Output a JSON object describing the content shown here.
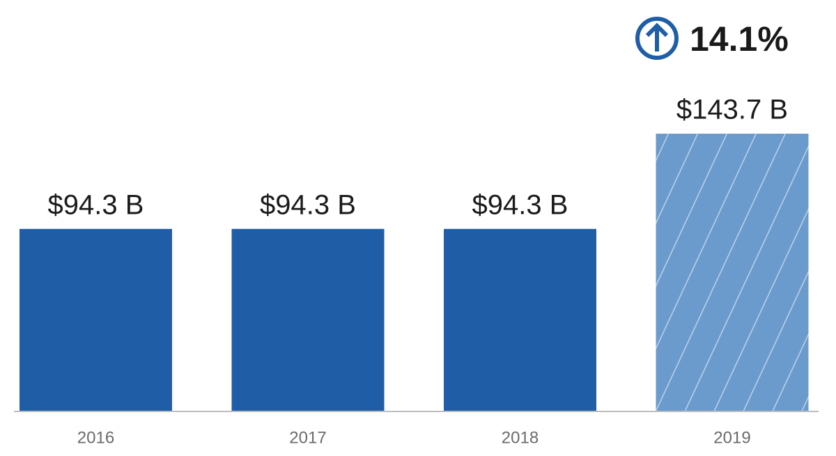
{
  "chart_data": {
    "type": "bar",
    "categories": [
      "2016",
      "2017",
      "2018",
      "2019"
    ],
    "values": [
      94.3,
      94.3,
      94.3,
      143.7
    ],
    "value_labels": [
      "$94.3 B",
      "$94.3 B",
      "$94.3 B",
      "$143.7 B"
    ],
    "colors": [
      "#1f5ea6",
      "#1f5ea6",
      "#1f5ea6",
      "#6b9bcc"
    ],
    "hatched": [
      false,
      false,
      false,
      true
    ],
    "annotation": "14.1%"
  }
}
